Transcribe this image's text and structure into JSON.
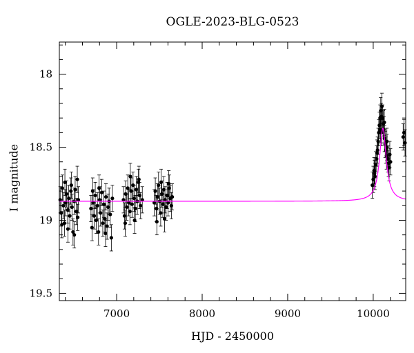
{
  "chart_data": {
    "type": "scatter",
    "title": "OGLE-2023-BLG-0523",
    "xlabel": "HJD - 2450000",
    "ylabel": "I magnitude",
    "xlim": [
      6330,
      10380
    ],
    "ylim": [
      19.55,
      17.78
    ],
    "y_inverted": true,
    "x_ticks": [
      7000,
      8000,
      9000,
      10000
    ],
    "y_ticks": [
      18,
      18.5,
      19,
      19.5
    ],
    "y_tick_labels": [
      "18",
      "18.5",
      "19",
      "19.5"
    ],
    "grid": false,
    "legend": "none",
    "series": [
      {
        "kind": "data_with_errorbars",
        "color": "#000000",
        "error": 0.09,
        "points": [
          [
            6340,
            18.86
          ],
          [
            6352,
            18.95
          ],
          [
            6365,
            18.78
          ],
          [
            6378,
            18.9
          ],
          [
            6390,
            19.02
          ],
          [
            6402,
            18.88
          ],
          [
            6415,
            18.82
          ],
          [
            6428,
            18.93
          ],
          [
            6440,
            18.85
          ],
          [
            6452,
            18.97
          ],
          [
            6465,
            18.8
          ],
          [
            6478,
            18.91
          ],
          [
            6490,
            19.08
          ],
          [
            6503,
            18.87
          ],
          [
            6515,
            18.79
          ],
          [
            6528,
            18.94
          ],
          [
            6540,
            18.72
          ],
          [
            6552,
            18.86
          ],
          [
            6360,
            19.03
          ],
          [
            6395,
            18.74
          ],
          [
            6430,
            19.06
          ],
          [
            6470,
            18.76
          ],
          [
            6505,
            19.1
          ],
          [
            6545,
            18.98
          ],
          [
            6700,
            18.92
          ],
          [
            6712,
            19.05
          ],
          [
            6725,
            18.88
          ],
          [
            6738,
            18.97
          ],
          [
            6750,
            18.83
          ],
          [
            6762,
            19.0
          ],
          [
            6775,
            18.9
          ],
          [
            6788,
            19.08
          ],
          [
            6800,
            18.86
          ],
          [
            6812,
            18.95
          ],
          [
            6825,
            18.81
          ],
          [
            6838,
            19.02
          ],
          [
            6850,
            18.89
          ],
          [
            6862,
            18.99
          ],
          [
            6875,
            18.84
          ],
          [
            6888,
            19.04
          ],
          [
            6900,
            18.91
          ],
          [
            6912,
            18.87
          ],
          [
            6925,
            18.96
          ],
          [
            6938,
            19.12
          ],
          [
            6950,
            18.85
          ],
          [
            6720,
            18.8
          ],
          [
            6795,
            18.78
          ],
          [
            6870,
            19.09
          ],
          [
            7080,
            18.86
          ],
          [
            7092,
            18.97
          ],
          [
            7105,
            18.82
          ],
          [
            7118,
            18.91
          ],
          [
            7130,
            18.78
          ],
          [
            7142,
            18.88
          ],
          [
            7155,
            18.94
          ],
          [
            7168,
            18.8
          ],
          [
            7180,
            18.89
          ],
          [
            7192,
            18.76
          ],
          [
            7205,
            18.85
          ],
          [
            7218,
            18.92
          ],
          [
            7230,
            18.79
          ],
          [
            7242,
            18.87
          ],
          [
            7255,
            18.74
          ],
          [
            7268,
            18.83
          ],
          [
            7280,
            18.9
          ],
          [
            7100,
            19.02
          ],
          [
            7160,
            18.7
          ],
          [
            7210,
            19.0
          ],
          [
            7260,
            18.72
          ],
          [
            7300,
            18.86
          ],
          [
            7440,
            18.88
          ],
          [
            7452,
            18.8
          ],
          [
            7465,
            18.92
          ],
          [
            7478,
            18.84
          ],
          [
            7490,
            18.76
          ],
          [
            7502,
            18.87
          ],
          [
            7515,
            18.95
          ],
          [
            7528,
            18.82
          ],
          [
            7540,
            18.89
          ],
          [
            7552,
            18.79
          ],
          [
            7565,
            18.86
          ],
          [
            7578,
            18.91
          ],
          [
            7590,
            18.83
          ],
          [
            7602,
            18.88
          ],
          [
            7615,
            18.78
          ],
          [
            7628,
            18.85
          ],
          [
            7640,
            18.9
          ],
          [
            7470,
            19.01
          ],
          [
            7520,
            18.74
          ],
          [
            7560,
            18.99
          ],
          [
            7610,
            18.75
          ],
          [
            7650,
            18.84
          ],
          [
            9990,
            18.76
          ],
          [
            10000,
            18.72
          ],
          [
            10010,
            18.66
          ],
          [
            10020,
            18.7
          ],
          [
            10030,
            18.62
          ],
          [
            10040,
            18.58
          ],
          [
            10050,
            18.52
          ],
          [
            10058,
            18.46
          ],
          [
            10065,
            18.4
          ],
          [
            10072,
            18.35
          ],
          [
            10080,
            18.3
          ],
          [
            10088,
            18.25
          ],
          [
            10095,
            18.29
          ],
          [
            10102,
            18.22
          ],
          [
            10110,
            18.3
          ],
          [
            10118,
            18.34
          ],
          [
            10125,
            18.38
          ],
          [
            10132,
            18.44
          ],
          [
            10140,
            18.48
          ],
          [
            10148,
            18.52
          ],
          [
            10155,
            18.56
          ],
          [
            10162,
            18.5
          ],
          [
            10170,
            18.58
          ],
          [
            10178,
            18.61
          ],
          [
            10186,
            18.64
          ],
          [
            10194,
            18.55
          ],
          [
            10202,
            18.6
          ],
          [
            10015,
            18.68
          ],
          [
            10045,
            18.54
          ],
          [
            10085,
            18.38
          ],
          [
            10100,
            18.4
          ],
          [
            10130,
            18.33
          ],
          [
            10160,
            18.46
          ],
          [
            10350,
            18.43
          ],
          [
            10360,
            18.4
          ],
          [
            10372,
            18.47
          ]
        ]
      },
      {
        "kind": "model",
        "color": "#ff00ff",
        "baseline": 18.87,
        "peak_mag": 18.37,
        "t0": 10113,
        "tE": 47
      }
    ]
  }
}
